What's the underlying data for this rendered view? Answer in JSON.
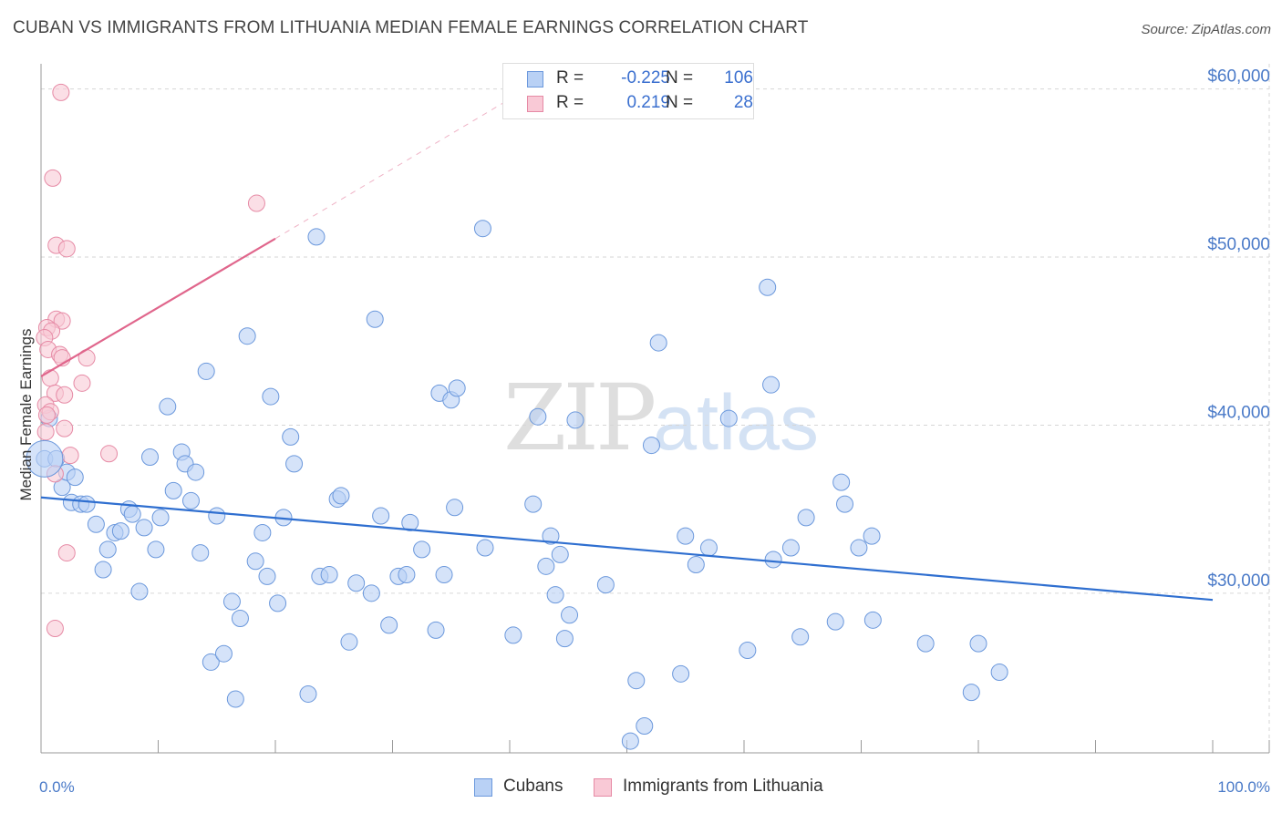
{
  "title": "CUBAN VS IMMIGRANTS FROM LITHUANIA MEDIAN FEMALE EARNINGS CORRELATION CHART",
  "source": "Source: ZipAtlas.com",
  "watermark": {
    "left": "ZIP",
    "right": "atlas"
  },
  "legend_top": [
    {
      "r_key": "R =",
      "r": "-0.225",
      "n_key": "N =",
      "n": "106",
      "color": "#b9d1f5",
      "border": "#6b98dc"
    },
    {
      "r_key": "R =",
      "r": "0.219",
      "n_key": "N =",
      "n": "28",
      "color": "#f9c9d6",
      "border": "#e68aa5"
    }
  ],
  "legend_bottom": [
    {
      "label": "Cubans",
      "color": "#b9d1f5",
      "border": "#6b98dc"
    },
    {
      "label": "Immigrants from Lithuania",
      "color": "#f9c9d6",
      "border": "#e68aa5"
    }
  ],
  "chart_data": {
    "type": "scatter",
    "title": "CUBAN VS IMMIGRANTS FROM LITHUANIA MEDIAN FEMALE EARNINGS CORRELATION CHART",
    "xlabel": "",
    "ylabel": "Median Female Earnings",
    "xlim": [
      0,
      100
    ],
    "ylim": [
      20500,
      61500
    ],
    "x_tick_labels": [
      {
        "value": 0,
        "label": "0.0%"
      },
      {
        "value": 100,
        "label": "100.0%"
      }
    ],
    "y_ticks": [
      {
        "value": 30000,
        "label": "$30,000"
      },
      {
        "value": 40000,
        "label": "$40,000"
      },
      {
        "value": 50000,
        "label": "$50,000"
      },
      {
        "value": 60000,
        "label": "$60,000"
      }
    ],
    "grid": true,
    "legend_position": "top-center",
    "series": [
      {
        "name": "Cubans",
        "color": "#b9d1f5",
        "edge": "#6b98dc",
        "trend": {
          "x": [
            0,
            100
          ],
          "y": [
            35700,
            29600
          ],
          "color": "#2f6fd0"
        },
        "points": [
          [
            0.3,
            38000
          ],
          [
            0.7,
            40400
          ],
          [
            1.3,
            38000
          ],
          [
            1.8,
            36300
          ],
          [
            2.2,
            37200
          ],
          [
            2.6,
            35400
          ],
          [
            2.9,
            36900
          ],
          [
            3.4,
            35300
          ],
          [
            3.9,
            35300
          ],
          [
            4.7,
            34100
          ],
          [
            5.3,
            31400
          ],
          [
            5.7,
            32600
          ],
          [
            6.3,
            33600
          ],
          [
            6.8,
            33700
          ],
          [
            7.5,
            35000
          ],
          [
            7.8,
            34700
          ],
          [
            8.4,
            30100
          ],
          [
            8.8,
            33900
          ],
          [
            9.3,
            38100
          ],
          [
            9.8,
            32600
          ],
          [
            10.2,
            34500
          ],
          [
            10.8,
            41100
          ],
          [
            11.3,
            36100
          ],
          [
            12.0,
            38400
          ],
          [
            12.3,
            37700
          ],
          [
            12.8,
            35500
          ],
          [
            13.2,
            37200
          ],
          [
            13.6,
            32400
          ],
          [
            14.1,
            43200
          ],
          [
            14.5,
            25900
          ],
          [
            15.0,
            34600
          ],
          [
            15.6,
            26400
          ],
          [
            16.3,
            29500
          ],
          [
            16.6,
            23700
          ],
          [
            17.0,
            28500
          ],
          [
            17.6,
            45300
          ],
          [
            18.3,
            31900
          ],
          [
            18.9,
            33600
          ],
          [
            19.3,
            31000
          ],
          [
            19.6,
            41700
          ],
          [
            20.2,
            29400
          ],
          [
            20.7,
            34500
          ],
          [
            21.3,
            39300
          ],
          [
            21.6,
            37700
          ],
          [
            22.8,
            24000
          ],
          [
            23.5,
            51200
          ],
          [
            23.8,
            31000
          ],
          [
            24.6,
            31100
          ],
          [
            25.3,
            35600
          ],
          [
            25.6,
            35800
          ],
          [
            26.3,
            27100
          ],
          [
            26.9,
            30600
          ],
          [
            28.2,
            30000
          ],
          [
            28.5,
            46300
          ],
          [
            29.0,
            34600
          ],
          [
            29.7,
            28100
          ],
          [
            30.5,
            31000
          ],
          [
            31.5,
            34200
          ],
          [
            31.2,
            31100
          ],
          [
            32.5,
            32600
          ],
          [
            33.7,
            27800
          ],
          [
            34.4,
            31100
          ],
          [
            34.0,
            41900
          ],
          [
            35.0,
            41500
          ],
          [
            35.5,
            42200
          ],
          [
            35.3,
            35100
          ],
          [
            37.7,
            51700
          ],
          [
            37.9,
            32700
          ],
          [
            40.3,
            27500
          ],
          [
            42.0,
            35300
          ],
          [
            42.4,
            40500
          ],
          [
            43.1,
            31600
          ],
          [
            43.5,
            33400
          ],
          [
            43.9,
            29900
          ],
          [
            44.3,
            32300
          ],
          [
            44.7,
            27300
          ],
          [
            45.1,
            28700
          ],
          [
            45.6,
            40300
          ],
          [
            48.2,
            30500
          ],
          [
            50.8,
            24800
          ],
          [
            51.5,
            22100
          ],
          [
            50.3,
            21200
          ],
          [
            52.1,
            38800
          ],
          [
            52.7,
            44900
          ],
          [
            54.6,
            25200
          ],
          [
            55.0,
            33400
          ],
          [
            55.9,
            31700
          ],
          [
            57.0,
            32700
          ],
          [
            58.7,
            40400
          ],
          [
            60.3,
            26600
          ],
          [
            62.0,
            48200
          ],
          [
            62.3,
            42400
          ],
          [
            62.5,
            32000
          ],
          [
            64.0,
            32700
          ],
          [
            64.8,
            27400
          ],
          [
            65.3,
            34500
          ],
          [
            67.8,
            28300
          ],
          [
            68.3,
            36600
          ],
          [
            68.6,
            35300
          ],
          [
            69.8,
            32700
          ],
          [
            70.9,
            33400
          ],
          [
            71.0,
            28400
          ],
          [
            75.5,
            27000
          ],
          [
            79.4,
            24100
          ],
          [
            80.0,
            27000
          ],
          [
            81.8,
            25300
          ]
        ]
      },
      {
        "name": "Immigrants from Lithuania",
        "color": "#f9c9d6",
        "edge": "#e68aa5",
        "trend": {
          "x": [
            0,
            20
          ],
          "y": [
            42900,
            51100
          ],
          "dash_to": [
            40,
            59400
          ],
          "color": "#e0668c"
        },
        "points": [
          [
            1.7,
            59800
          ],
          [
            1.0,
            54700
          ],
          [
            18.4,
            53200
          ],
          [
            1.3,
            50700
          ],
          [
            2.2,
            50500
          ],
          [
            1.3,
            46300
          ],
          [
            1.8,
            46200
          ],
          [
            0.5,
            45800
          ],
          [
            0.9,
            45600
          ],
          [
            0.3,
            45200
          ],
          [
            0.6,
            44500
          ],
          [
            1.6,
            44200
          ],
          [
            1.8,
            44000
          ],
          [
            3.9,
            44000
          ],
          [
            0.8,
            42800
          ],
          [
            3.5,
            42500
          ],
          [
            1.2,
            41900
          ],
          [
            2.0,
            41800
          ],
          [
            0.4,
            41200
          ],
          [
            0.8,
            40800
          ],
          [
            0.5,
            40600
          ],
          [
            2.0,
            39800
          ],
          [
            0.4,
            39600
          ],
          [
            2.5,
            38200
          ],
          [
            5.8,
            38300
          ],
          [
            1.2,
            37100
          ],
          [
            2.2,
            32400
          ],
          [
            1.2,
            27900
          ]
        ]
      }
    ]
  }
}
